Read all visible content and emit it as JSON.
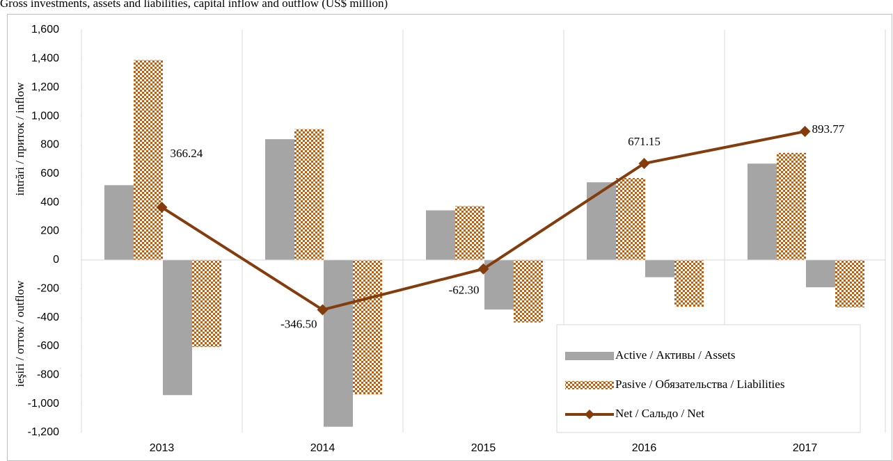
{
  "chart_data": {
    "type": "bar",
    "title": "Gross investments, assets and liabilities, capital inflow and outflow (US$ million)",
    "y_label_upper": "intrări / приток / inflow",
    "y_label_lower": "ieşiri / отток / outflow",
    "categories": [
      "2013",
      "2014",
      "2015",
      "2016",
      "2017"
    ],
    "series": [
      {
        "name": "Active / Активы / Assets",
        "type": "bar",
        "color": "#a5a5a5",
        "values": [
          520,
          840,
          345,
          540,
          670
        ],
        "outflow_values": [
          -940,
          -1160,
          -345,
          -120,
          -190
        ]
      },
      {
        "name": "Pasive / Обязательства / Liabilities",
        "type": "bar",
        "color": "#c55a11",
        "pattern": "checker",
        "values": [
          1390,
          910,
          375,
          570,
          745
        ],
        "outflow_values": [
          -605,
          -935,
          -435,
          -325,
          -330
        ]
      },
      {
        "name": "Net / Сальдо / Net",
        "type": "line",
        "color": "#843c0c",
        "marker": "diamond",
        "values": [
          366.24,
          -346.5,
          -62.3,
          671.15,
          893.77
        ],
        "value_labels": [
          "366.24",
          "-346.50",
          "-62.30",
          "671.15",
          "893.77"
        ]
      }
    ],
    "ylim": [
      -1200,
      1600
    ],
    "yticks": [
      {
        "value": -1200,
        "label": "-1,200"
      },
      {
        "value": -1000,
        "label": "-1,000"
      },
      -800,
      -600,
      -400,
      -200,
      0,
      200,
      400,
      600,
      800,
      {
        "value": 1000,
        "label": "1,000"
      },
      {
        "value": 1200,
        "label": "1,200"
      },
      {
        "value": 1400,
        "label": "1,400"
      },
      {
        "value": 1600,
        "label": "1,600"
      }
    ],
    "grid": "vertical",
    "legend": "bottom-right"
  }
}
